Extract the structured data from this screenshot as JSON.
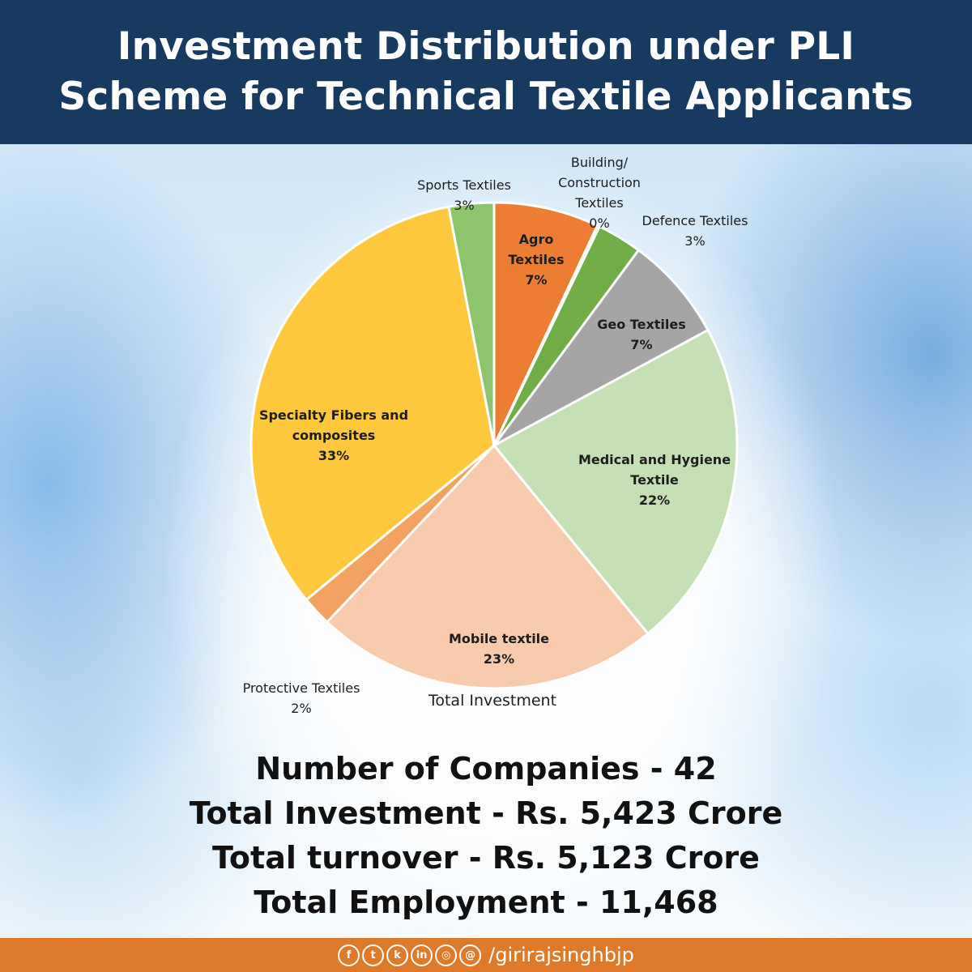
{
  "header": {
    "title_line1": "Investment  Distribution under PLI",
    "title_line2": "Scheme for Technical Textile Applicants",
    "bg_color": "#173a60"
  },
  "chart_data": {
    "type": "pie",
    "title": "Total Investment",
    "slices": [
      {
        "label_lines": [
          "Agro",
          "Textiles"
        ],
        "pct_label": "7%",
        "value": 7,
        "color": "#ec7d32"
      },
      {
        "label_lines": [
          "Building/",
          "Construction",
          "Textiles"
        ],
        "pct_label": "0%",
        "value": 0.15,
        "color": "#ec7d32"
      },
      {
        "label_lines": [
          "Defence Textiles"
        ],
        "pct_label": "3%",
        "value": 3,
        "color": "#70ad47"
      },
      {
        "label_lines": [
          "Geo Textiles"
        ],
        "pct_label": "7%",
        "value": 7,
        "color": "#a5a5a5"
      },
      {
        "label_lines": [
          "Medical and Hygiene",
          "Textile"
        ],
        "pct_label": "22%",
        "value": 22,
        "color": "#c5e0b4"
      },
      {
        "label_lines": [
          "Mobile textile"
        ],
        "pct_label": "23%",
        "value": 23,
        "color": "#f8cbad"
      },
      {
        "label_lines": [
          "Protective Textiles"
        ],
        "pct_label": "2%",
        "value": 2,
        "color": "#f4a261"
      },
      {
        "label_lines": [
          "Specialty Fibers and",
          "composites"
        ],
        "pct_label": "33%",
        "value": 33,
        "color": "#ffc83d"
      },
      {
        "label_lines": [
          "Sports Textiles"
        ],
        "pct_label": "3%",
        "value": 3,
        "color": "#8cc56e"
      }
    ]
  },
  "stats": [
    "Number of Companies - 42",
    "Total Investment - Rs. 5,423 Crore",
    "Total turnover - Rs. 5,123 Crore",
    "Total Employment - 11,468"
  ],
  "footer": {
    "bg_color": "#e07a2b",
    "icons": [
      {
        "name": "facebook-icon",
        "glyph": "f"
      },
      {
        "name": "twitter-icon",
        "glyph": "t"
      },
      {
        "name": "koo-icon",
        "glyph": "k"
      },
      {
        "name": "linkedin-icon",
        "glyph": "in"
      },
      {
        "name": "instagram-icon",
        "glyph": "◎"
      },
      {
        "name": "threads-icon",
        "glyph": "@"
      }
    ],
    "handle": "/girirajsinghbjp"
  }
}
